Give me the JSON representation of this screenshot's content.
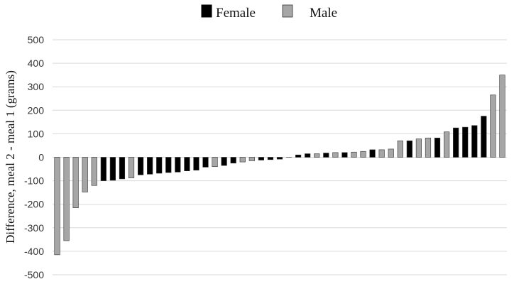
{
  "chart_data": {
    "type": "bar",
    "ylabel": "Difference, meal 2 - meal 1 (grams)",
    "ylim": [
      -500,
      500
    ],
    "yticks": [
      500,
      400,
      300,
      200,
      100,
      0,
      -100,
      -200,
      -300,
      -400,
      -500
    ],
    "grid": true,
    "legend_position": "top-center",
    "series": [
      {
        "name": "Female",
        "color": "#000000"
      },
      {
        "name": "Male",
        "color": "#a6a6a6"
      }
    ],
    "bars": [
      {
        "value": -415,
        "series": "Male"
      },
      {
        "value": -355,
        "series": "Male"
      },
      {
        "value": -215,
        "series": "Male"
      },
      {
        "value": -148,
        "series": "Male"
      },
      {
        "value": -120,
        "series": "Male"
      },
      {
        "value": -100,
        "series": "Female"
      },
      {
        "value": -98,
        "series": "Female"
      },
      {
        "value": -92,
        "series": "Female"
      },
      {
        "value": -88,
        "series": "Male"
      },
      {
        "value": -75,
        "series": "Female"
      },
      {
        "value": -72,
        "series": "Female"
      },
      {
        "value": -68,
        "series": "Female"
      },
      {
        "value": -65,
        "series": "Female"
      },
      {
        "value": -63,
        "series": "Female"
      },
      {
        "value": -58,
        "series": "Female"
      },
      {
        "value": -55,
        "series": "Female"
      },
      {
        "value": -42,
        "series": "Female"
      },
      {
        "value": -40,
        "series": "Male"
      },
      {
        "value": -35,
        "series": "Female"
      },
      {
        "value": -25,
        "series": "Female"
      },
      {
        "value": -20,
        "series": "Male"
      },
      {
        "value": -15,
        "series": "Male"
      },
      {
        "value": -12,
        "series": "Female"
      },
      {
        "value": -10,
        "series": "Female"
      },
      {
        "value": -8,
        "series": "Female"
      },
      {
        "value": 0,
        "series": "Female"
      },
      {
        "value": 10,
        "series": "Female"
      },
      {
        "value": 15,
        "series": "Female"
      },
      {
        "value": 15,
        "series": "Male"
      },
      {
        "value": 18,
        "series": "Female"
      },
      {
        "value": 20,
        "series": "Male"
      },
      {
        "value": 20,
        "series": "Female"
      },
      {
        "value": 22,
        "series": "Male"
      },
      {
        "value": 25,
        "series": "Male"
      },
      {
        "value": 32,
        "series": "Female"
      },
      {
        "value": 32,
        "series": "Male"
      },
      {
        "value": 35,
        "series": "Male"
      },
      {
        "value": 70,
        "series": "Male"
      },
      {
        "value": 70,
        "series": "Female"
      },
      {
        "value": 78,
        "series": "Male"
      },
      {
        "value": 82,
        "series": "Male"
      },
      {
        "value": 82,
        "series": "Female"
      },
      {
        "value": 108,
        "series": "Male"
      },
      {
        "value": 125,
        "series": "Female"
      },
      {
        "value": 128,
        "series": "Female"
      },
      {
        "value": 135,
        "series": "Female"
      },
      {
        "value": 175,
        "series": "Female"
      },
      {
        "value": 265,
        "series": "Male"
      },
      {
        "value": 350,
        "series": "Male"
      }
    ]
  }
}
